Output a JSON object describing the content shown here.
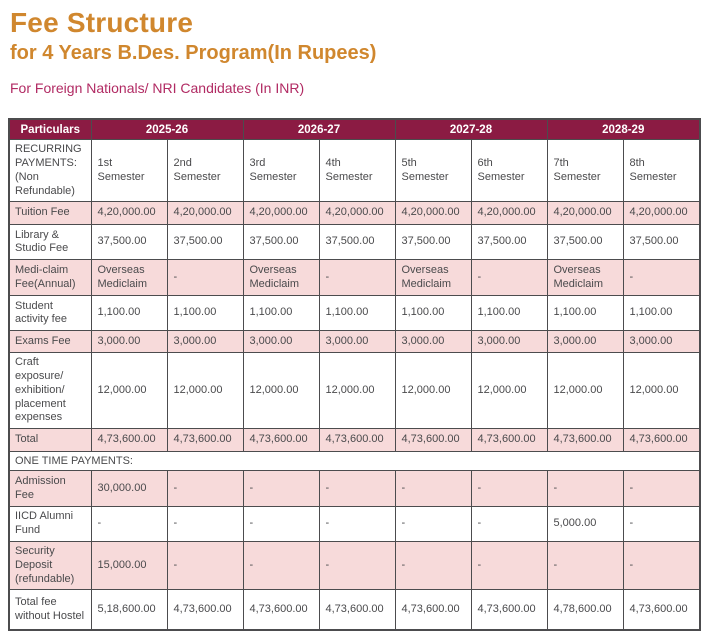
{
  "page": {
    "title": "Fee Structure",
    "subtitle": "for 4 Years B.Des. Program(In Rupees)",
    "audience": "For Foreign Nationals/ NRI Candidates (In INR)"
  },
  "colors": {
    "title_orange": "#d0872e",
    "audience_magenta": "#b12a63",
    "header_maroon": "#8b1b43",
    "row_pink": "#f7dada",
    "border_gray": "#4c4c4e",
    "text_gray": "#4a4a4c"
  },
  "table": {
    "header": {
      "particulars": "Particulars",
      "years": [
        "2025-26",
        "2026-27",
        "2027-28",
        "2028-29"
      ]
    },
    "rows": [
      {
        "id": "semester-header",
        "variant": "white",
        "label": "RECURRING PAYMENTS: (Non Refundable)",
        "cells": [
          "1st\nSemester",
          "2nd\nSemester",
          "3rd\nSemester",
          "4th\nSemester",
          "5th\nSemester",
          "6th\nSemester",
          "7th\nSemester",
          "8th\nSemester"
        ]
      },
      {
        "id": "tuition-fee",
        "variant": "pink",
        "label": "Tuition Fee",
        "cells": [
          "4,20,000.00",
          "4,20,000.00",
          "4,20,000.00",
          "4,20,000.00",
          "4,20,000.00",
          "4,20,000.00",
          "4,20,000.00",
          "4,20,000.00"
        ]
      },
      {
        "id": "library-studio-fee",
        "variant": "white",
        "label": "Library & Studio Fee",
        "cells": [
          "37,500.00",
          "37,500.00",
          "37,500.00",
          "37,500.00",
          "37,500.00",
          "37,500.00",
          "37,500.00",
          "37,500.00"
        ]
      },
      {
        "id": "mediclaim-fee",
        "variant": "pink",
        "label": "Medi-claim Fee(Annual)",
        "cells": [
          "Overseas Mediclaim",
          "-",
          "Overseas Mediclaim",
          "-",
          "Overseas Mediclaim",
          "-",
          "Overseas Mediclaim",
          "-"
        ]
      },
      {
        "id": "student-activity-fee",
        "variant": "white",
        "label": "Student activity fee",
        "cells": [
          "1,100.00",
          "1,100.00",
          "1,100.00",
          "1,100.00",
          "1,100.00",
          "1,100.00",
          "1,100.00",
          "1,100.00"
        ]
      },
      {
        "id": "exams-fee",
        "variant": "pink",
        "label": "Exams Fee",
        "cells": [
          "3,000.00",
          "3,000.00",
          "3,000.00",
          "3,000.00",
          "3,000.00",
          "3,000.00",
          "3,000.00",
          "3,000.00"
        ]
      },
      {
        "id": "craft-expenses",
        "variant": "white",
        "label": "Craft exposure/ exhibition/ placement expenses",
        "cells": [
          "12,000.00",
          "12,000.00",
          "12,000.00",
          "12,000.00",
          "12,000.00",
          "12,000.00",
          "12,000.00",
          "12,000.00"
        ]
      },
      {
        "id": "total",
        "variant": "pink",
        "label": "Total",
        "cells": [
          "4,73,600.00",
          "4,73,600.00",
          "4,73,600.00",
          "4,73,600.00",
          "4,73,600.00",
          "4,73,600.00",
          "4,73,600.00",
          "4,73,600.00"
        ]
      },
      {
        "id": "one-time-payments-section",
        "variant": "section",
        "label": "ONE TIME PAYMENTS:",
        "cells": []
      },
      {
        "id": "admission-fee",
        "variant": "pink",
        "label": "Admission Fee",
        "cells": [
          "30,000.00",
          "-",
          "-",
          "-",
          "-",
          "-",
          "-",
          "-"
        ]
      },
      {
        "id": "iicd-alumni-fund",
        "variant": "white",
        "label": "IICD Alumni Fund",
        "cells": [
          "-",
          "-",
          "-",
          "-",
          "-",
          "-",
          "5,000.00",
          "-"
        ]
      },
      {
        "id": "security-deposit",
        "variant": "pink",
        "label": "Security Deposit (refundable)",
        "cells": [
          "15,000.00",
          "-",
          "-",
          "-",
          "-",
          "-",
          "-",
          "-"
        ]
      },
      {
        "id": "total-fee-without-hostel",
        "variant": "white",
        "label": "Total fee without Hostel",
        "cells": [
          "5,18,600.00",
          "4,73,600.00",
          "4,73,600.00",
          "4,73,600.00",
          "4,73,600.00",
          "4,73,600.00",
          "4,78,600.00",
          "4,73,600.00"
        ]
      }
    ]
  }
}
